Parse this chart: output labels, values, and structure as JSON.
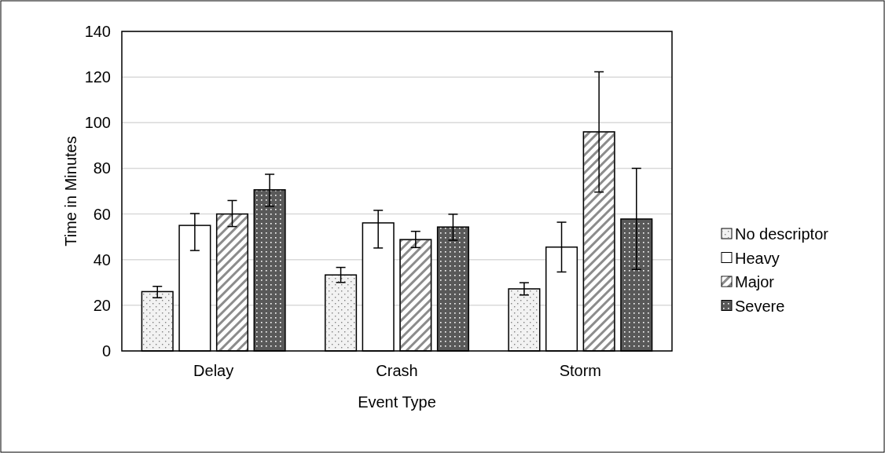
{
  "chart_data": {
    "type": "bar",
    "xlabel": "Event Type",
    "ylabel": "Time in Minutes",
    "categories": [
      "Delay",
      "Crash",
      "Storm"
    ],
    "series": [
      {
        "name": "No descriptor",
        "color": "#f2f2f2",
        "values": [
          26,
          33.3,
          27.2
        ],
        "errors": [
          [
            23.3,
            28.3
          ],
          [
            30,
            36.6
          ],
          [
            24.5,
            29.9
          ]
        ]
      },
      {
        "name": "Heavy",
        "color": "#ffffff",
        "values": [
          55,
          56.1,
          45.5
        ],
        "errors": [
          [
            44,
            60.2
          ],
          [
            45.1,
            61.6
          ],
          [
            34.6,
            56.4
          ]
        ]
      },
      {
        "name": "Major",
        "color": "#8c8c8c",
        "values": [
          60,
          48.8,
          96
        ],
        "errors": [
          [
            54.5,
            65.9
          ],
          [
            45.3,
            52.4
          ],
          [
            69.6,
            122.3
          ]
        ]
      },
      {
        "name": "Severe",
        "color": "#595959",
        "values": [
          70.6,
          54.3,
          57.8
        ],
        "errors": [
          [
            63.4,
            77.4
          ],
          [
            48.5,
            59.9
          ],
          [
            35.7,
            80
          ]
        ]
      }
    ],
    "ylim": [
      0,
      140
    ],
    "yticks": [
      0,
      20,
      40,
      60,
      80,
      100,
      120,
      140
    ],
    "grid": "y",
    "legend": "right"
  }
}
